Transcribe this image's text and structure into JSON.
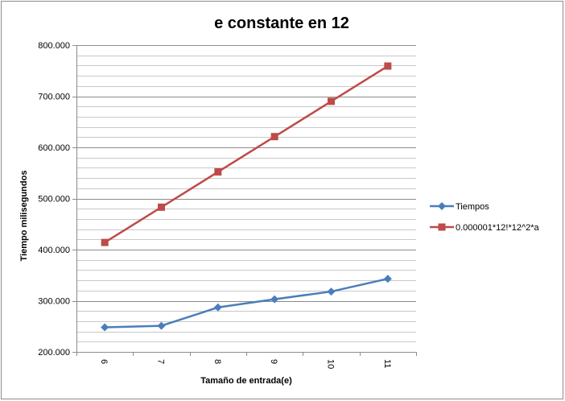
{
  "chart_data": {
    "type": "line",
    "title": "e constante en 12",
    "xlabel": "Tamaño de entrada(e)",
    "ylabel": "Tiempo milisegundos",
    "categories": [
      "6",
      "7",
      "8",
      "9",
      "10",
      "11"
    ],
    "ylim": [
      200000,
      800000
    ],
    "ytick_labels": [
      "200.000",
      "300.000",
      "400.000",
      "500.000",
      "600.000",
      "700.000",
      "800.000"
    ],
    "ytick_values": [
      200000,
      300000,
      400000,
      500000,
      600000,
      700000,
      800000
    ],
    "minor_grid_step": 20000,
    "grid": true,
    "legend_position": "right",
    "series": [
      {
        "name": "Tiempos",
        "color": "#4a7ebb",
        "marker": "diamond",
        "values": [
          248000,
          251000,
          287000,
          303000,
          318000,
          343000
        ]
      },
      {
        "name": "0.000001*12!*12^2*a",
        "color": "#be4b48",
        "marker": "square",
        "values": [
          414000,
          483000,
          552000,
          621000,
          690000,
          759000
        ]
      }
    ]
  }
}
